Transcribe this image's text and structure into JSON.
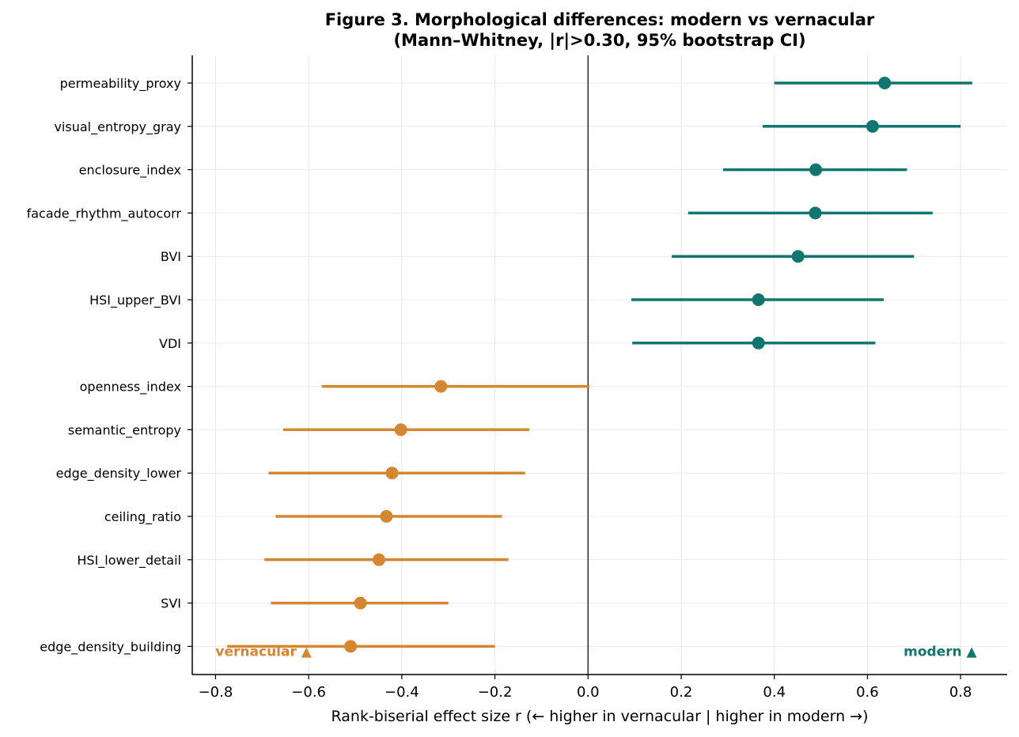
{
  "chart_data": {
    "type": "scatter",
    "subtype": "forest-plot",
    "title": "Figure 3. Morphological differences: modern vs vernacular",
    "subtitle": "(Mann–Whitney, |r|>0.30, 95% bootstrap CI)",
    "xlabel": "Rank-biserial effect size  r  (← higher in vernacular | higher in modern →)",
    "ylabel": "",
    "xlim": [
      -0.85,
      0.9
    ],
    "xticks": [
      -0.8,
      -0.6,
      -0.4,
      -0.2,
      0.0,
      0.2,
      0.4,
      0.6,
      0.8
    ],
    "xtick_labels": [
      "−0.8",
      "−0.6",
      "−0.4",
      "−0.2",
      "0.0",
      "0.2",
      "0.4",
      "0.6",
      "0.8"
    ],
    "grid": true,
    "reference_line": 0,
    "colors": {
      "modern": "#11766f",
      "vernacular": "#d58630"
    },
    "annotations": {
      "vernacular": "vernacular ▲",
      "modern": "modern ▲"
    },
    "series": [
      {
        "label": "permeability_proxy",
        "group": "modern",
        "r": 0.637,
        "ci": [
          0.4,
          0.825
        ]
      },
      {
        "label": "visual_entropy_gray",
        "group": "modern",
        "r": 0.611,
        "ci": [
          0.375,
          0.8
        ]
      },
      {
        "label": "enclosure_index",
        "group": "modern",
        "r": 0.489,
        "ci": [
          0.29,
          0.685
        ]
      },
      {
        "label": "facade_rhythm_autocorr",
        "group": "modern",
        "r": 0.488,
        "ci": [
          0.215,
          0.74
        ]
      },
      {
        "label": "BVI",
        "group": "modern",
        "r": 0.451,
        "ci": [
          0.18,
          0.7
        ]
      },
      {
        "label": "HSI_upper_BVI",
        "group": "modern",
        "r": 0.366,
        "ci": [
          0.093,
          0.635
        ]
      },
      {
        "label": "VDI",
        "group": "modern",
        "r": 0.366,
        "ci": [
          0.095,
          0.617
        ]
      },
      {
        "label": "openness_index",
        "group": "vernacular",
        "r": -0.316,
        "ci": [
          -0.572,
          0.003
        ]
      },
      {
        "label": "semantic_entropy",
        "group": "vernacular",
        "r": -0.402,
        "ci": [
          -0.655,
          -0.126
        ]
      },
      {
        "label": "edge_density_lower",
        "group": "vernacular",
        "r": -0.421,
        "ci": [
          -0.686,
          -0.135
        ]
      },
      {
        "label": "ceiling_ratio",
        "group": "vernacular",
        "r": -0.433,
        "ci": [
          -0.671,
          -0.185
        ]
      },
      {
        "label": "HSI_lower_detail",
        "group": "vernacular",
        "r": -0.449,
        "ci": [
          -0.695,
          -0.171
        ]
      },
      {
        "label": "SVI",
        "group": "vernacular",
        "r": -0.489,
        "ci": [
          -0.681,
          -0.3
        ]
      },
      {
        "label": "edge_density_building",
        "group": "vernacular",
        "r": -0.51,
        "ci": [
          -0.775,
          -0.2
        ]
      }
    ]
  }
}
